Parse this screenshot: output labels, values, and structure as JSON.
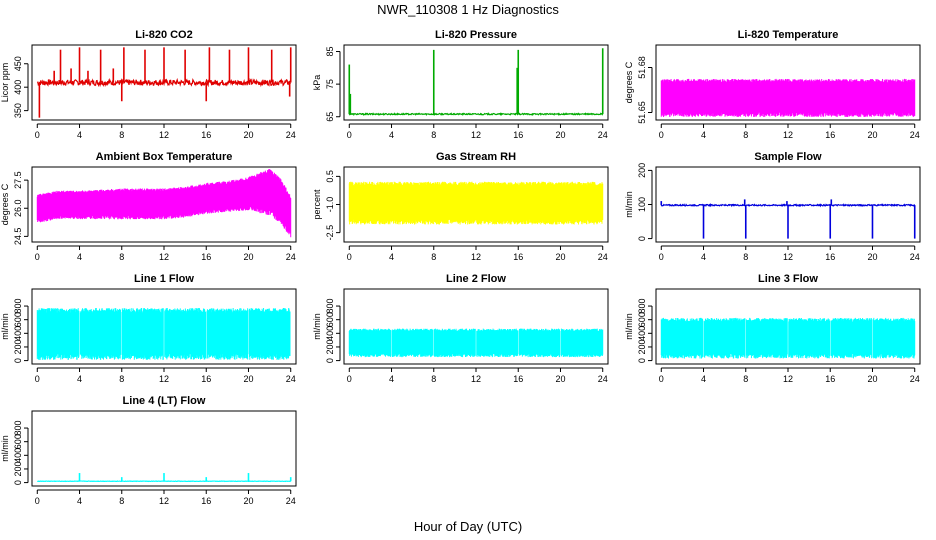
{
  "figure": {
    "title": "NWR_110308  1 Hz Diagnostics",
    "xlabel": "Hour of Day (UTC)"
  },
  "chart_data": [
    {
      "type": "line",
      "title": "Li-820 CO2",
      "ylabel": "Licor ppm",
      "color": "#e00000",
      "xlim": [
        -0.5,
        24.5
      ],
      "ylim": [
        330,
        490
      ],
      "xticks": [
        0,
        4,
        8,
        12,
        16,
        20,
        24
      ],
      "yticks": [
        350,
        400,
        450
      ],
      "series": [
        {
          "pattern": "spiky",
          "x": [
            0,
            24
          ],
          "baseline": 410,
          "noise": 6,
          "spikes": [
            [
              0.2,
              335
            ],
            [
              1.6,
              435
            ],
            [
              2.2,
              480
            ],
            [
              3.2,
              440
            ],
            [
              4,
              485
            ],
            [
              4.8,
              435
            ],
            [
              6,
              480
            ],
            [
              7.2,
              440
            ],
            [
              8,
              370
            ],
            [
              8.2,
              485
            ],
            [
              10.2,
              480
            ],
            [
              12,
              485
            ],
            [
              14,
              480
            ],
            [
              16,
              370
            ],
            [
              16.3,
              485
            ],
            [
              18.2,
              480
            ],
            [
              20,
              485
            ],
            [
              22.2,
              480
            ],
            [
              23.9,
              380
            ],
            [
              24,
              485
            ]
          ]
        }
      ]
    },
    {
      "type": "line",
      "title": "Li-820 Pressure",
      "ylabel": "kPa",
      "color": "#00aa00",
      "xlim": [
        -0.5,
        24.5
      ],
      "ylim": [
        64,
        87
      ],
      "xticks": [
        0,
        4,
        8,
        12,
        16,
        20,
        24
      ],
      "yticks": [
        65,
        75,
        85
      ],
      "series": [
        {
          "pattern": "spiky",
          "x": [
            0,
            24
          ],
          "baseline": 65.8,
          "noise": 0.2,
          "spikes": [
            [
              0,
              81
            ],
            [
              0.1,
              72
            ],
            [
              8,
              85.5
            ],
            [
              16,
              85.5
            ],
            [
              15.9,
              80
            ],
            [
              24,
              86
            ]
          ]
        }
      ]
    },
    {
      "type": "area",
      "title": "Li-820 Temperature",
      "ylabel": "degrees C",
      "color": "#ff00ff",
      "xlim": [
        -0.5,
        24.5
      ],
      "ylim": [
        51.645,
        51.695
      ],
      "xticks": [
        0,
        4,
        8,
        12,
        16,
        20,
        24
      ],
      "yticks": [
        51.65,
        51.68
      ],
      "ytick_labels": [
        "51.65",
        "51.68"
      ],
      "series": [
        {
          "pattern": "band",
          "x": [
            0,
            24
          ],
          "low": 51.65,
          "high": 51.67
        }
      ]
    },
    {
      "type": "area",
      "title": "Ambient Box Temperature",
      "ylabel": "degrees C",
      "color": "#ff00ff",
      "xlim": [
        -0.5,
        24.5
      ],
      "ylim": [
        24.2,
        28.2
      ],
      "xticks": [
        0,
        4,
        8,
        12,
        16,
        20,
        24
      ],
      "yticks": [
        24.5,
        26.0,
        27.5
      ],
      "ytick_labels": [
        "24.5",
        "26.0",
        "27.5"
      ],
      "series": [
        {
          "pattern": "band",
          "x": [
            0,
            2,
            4,
            8,
            12,
            14,
            16,
            18,
            20,
            21,
            22,
            23,
            24
          ],
          "low": [
            25.4,
            25.6,
            25.6,
            25.6,
            25.6,
            25.7,
            25.9,
            26.0,
            26.1,
            26.0,
            25.9,
            25.5,
            24.7
          ],
          "high": [
            26.6,
            26.8,
            26.8,
            26.9,
            26.9,
            27.0,
            27.2,
            27.3,
            27.5,
            27.7,
            27.9,
            27.4,
            26.5
          ]
        }
      ]
    },
    {
      "type": "area",
      "title": "Gas Stream RH",
      "ylabel": "percent",
      "color": "#ffff00",
      "xlim": [
        -0.5,
        24.5
      ],
      "ylim": [
        -3.0,
        1.0
      ],
      "xticks": [
        0,
        4,
        8,
        12,
        16,
        20,
        24
      ],
      "yticks": [
        0.5,
        -1.0,
        -2.5
      ],
      "ytick_labels": [
        "0.5",
        "-1.0",
        "-2.5"
      ],
      "series": [
        {
          "pattern": "band",
          "x": [
            0,
            24
          ],
          "low": -1.8,
          "high": 0.0
        }
      ]
    },
    {
      "type": "line",
      "title": "Sample Flow",
      "ylabel": "ml/min",
      "color": "#0000dd",
      "xlim": [
        -0.5,
        24.5
      ],
      "ylim": [
        -10,
        210
      ],
      "xticks": [
        0,
        4,
        8,
        12,
        16,
        20,
        24
      ],
      "yticks": [
        0,
        100,
        200
      ],
      "series": [
        {
          "pattern": "spiky",
          "x": [
            0,
            24
          ],
          "baseline": 98,
          "noise": 2,
          "spikes": [
            [
              0,
              110
            ],
            [
              4,
              0
            ],
            [
              7.9,
              115
            ],
            [
              8,
              0
            ],
            [
              12,
              0
            ],
            [
              11.9,
              110
            ],
            [
              16,
              0
            ],
            [
              16.1,
              115
            ],
            [
              20,
              0
            ],
            [
              24,
              0
            ]
          ]
        }
      ]
    },
    {
      "type": "area",
      "title": "Line 1 Flow",
      "ylabel": "ml/min",
      "color": "#00ffff",
      "xlim": [
        -0.5,
        24.5
      ],
      "ylim": [
        -50,
        1050
      ],
      "xticks": [
        0,
        4,
        8,
        12,
        16,
        20,
        24
      ],
      "yticks": [
        0,
        200,
        400,
        600,
        800
      ],
      "series": [
        {
          "pattern": "band",
          "x": [
            0,
            24
          ],
          "low": 100,
          "high": 700,
          "gaps": [
            4,
            8,
            12,
            16,
            20,
            24
          ]
        }
      ]
    },
    {
      "type": "area",
      "title": "Line 2 Flow",
      "ylabel": "ml/min",
      "color": "#00ffff",
      "xlim": [
        -0.5,
        24.5
      ],
      "ylim": [
        -50,
        1050
      ],
      "xticks": [
        0,
        4,
        8,
        12,
        16,
        20,
        24
      ],
      "yticks": [
        0,
        200,
        400,
        600,
        800
      ],
      "series": [
        {
          "pattern": "band",
          "x": [
            0,
            24
          ],
          "low": 100,
          "high": 430,
          "gaps": [
            4,
            8,
            12,
            16,
            20
          ]
        }
      ]
    },
    {
      "type": "area",
      "title": "Line 3 Flow",
      "ylabel": "ml/min",
      "color": "#00ffff",
      "xlim": [
        -0.5,
        24.5
      ],
      "ylim": [
        -50,
        1050
      ],
      "xticks": [
        0,
        4,
        8,
        12,
        16,
        20,
        24
      ],
      "yticks": [
        0,
        200,
        400,
        600,
        800
      ],
      "series": [
        {
          "pattern": "band",
          "x": [
            0,
            24
          ],
          "low": 100,
          "high": 570,
          "gaps": [
            4,
            8,
            12,
            16,
            20
          ]
        }
      ]
    },
    {
      "type": "line",
      "title": "Line 4 (LT) Flow",
      "ylabel": "ml/min",
      "color": "#00ffff",
      "xlim": [
        -0.5,
        24.5
      ],
      "ylim": [
        -50,
        1050
      ],
      "xticks": [
        0,
        4,
        8,
        12,
        16,
        20,
        24
      ],
      "yticks": [
        0,
        200,
        400,
        600,
        800
      ],
      "series": [
        {
          "pattern": "spiky",
          "x": [
            0,
            24
          ],
          "baseline": 20,
          "noise": 3,
          "spikes": [
            [
              4,
              140
            ],
            [
              8,
              80
            ],
            [
              12,
              140
            ],
            [
              16,
              80
            ],
            [
              20,
              140
            ],
            [
              24,
              80
            ]
          ]
        }
      ]
    }
  ]
}
